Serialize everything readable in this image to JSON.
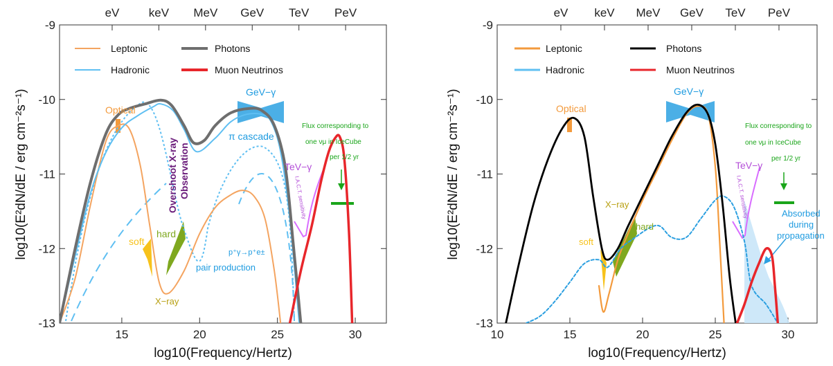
{
  "chart_data": [
    {
      "type": "line",
      "xlabel": "log10(Frequency/Hertz)",
      "ylabel": "log10(E²dN/dE / erg cm⁻²s⁻¹)",
      "xlim": [
        11,
        32
      ],
      "ylim": [
        -13,
        -9
      ],
      "x_ticks": [
        15,
        20,
        25,
        30
      ],
      "y_ticks": [
        -13,
        -12,
        -11,
        -10,
        -9
      ],
      "top_axis": {
        "labels": [
          "eV",
          "keV",
          "MeV",
          "GeV",
          "TeV",
          "PeV"
        ],
        "x": [
          14.38,
          17.38,
          20.38,
          23.38,
          26.38,
          29.38
        ]
      },
      "legend": [
        "Leptonic",
        "Hadronic",
        "Photons",
        "Muon Neutrinos"
      ],
      "series": [
        {
          "name": "Photons",
          "color": "#6e6e6e",
          "x": [
            11,
            12,
            13,
            14,
            14.8,
            15.5,
            16.5,
            17.5,
            18.2,
            19,
            19.6,
            20.3,
            21,
            22,
            23.2,
            24,
            24.8,
            25.5,
            26,
            26.5
          ],
          "y": [
            -13,
            -12,
            -11.1,
            -10.45,
            -10.2,
            -10.12,
            -10.06,
            -10.01,
            -10.08,
            -10.35,
            -10.58,
            -10.55,
            -10.35,
            -10.18,
            -10.12,
            -10.15,
            -10.35,
            -10.9,
            -11.9,
            -13
          ]
        },
        {
          "name": "Leptonic",
          "color": "#f4a460",
          "x": [
            11,
            12,
            13,
            14,
            14.8,
            15.5,
            16.2,
            16.8,
            17.4,
            18,
            19,
            20,
            21,
            22,
            22.8,
            23.5,
            24.2,
            24.8,
            25.2
          ],
          "y": [
            -13,
            -12.4,
            -11.4,
            -10.55,
            -10.35,
            -10.4,
            -10.9,
            -11.7,
            -12.45,
            -12.6,
            -12.3,
            -11.8,
            -11.45,
            -11.28,
            -11.22,
            -11.3,
            -11.6,
            -12.3,
            -13
          ]
        },
        {
          "name": "Hadronic",
          "color": "#5fbff2",
          "x": [
            11,
            12,
            13,
            14,
            15,
            16,
            17,
            17.5,
            18.3,
            19,
            19.8,
            21,
            22,
            23,
            24,
            24.6,
            25.2,
            25.8,
            26.4
          ],
          "y": [
            -13,
            -12.1,
            -11.25,
            -10.7,
            -10.38,
            -10.22,
            -10.1,
            -10.06,
            -10.15,
            -10.4,
            -10.7,
            -10.52,
            -10.3,
            -10.2,
            -10.2,
            -10.3,
            -10.7,
            -11.6,
            -13
          ]
        },
        {
          "name": "Muon Neutrinos",
          "color": "#e8262b",
          "x": [
            25.8,
            26.5,
            27.2,
            27.8,
            28.3,
            28.7,
            29.0,
            29.3,
            29.6,
            29.8
          ],
          "y": [
            -13,
            -12.3,
            -11.7,
            -11.1,
            -10.7,
            -10.52,
            -10.5,
            -10.8,
            -11.8,
            -13
          ]
        }
      ],
      "annotations": {
        "optical": "Optical",
        "gev": "GeV−γ",
        "pi_cascade": "π cascade",
        "tev": "TeV−γ",
        "flux_lines": [
          "Flux corresponding to",
          "one νμ in IceCube",
          "per 1/2 yr"
        ],
        "overshoot": [
          "Overshoot X-ray",
          "Observation"
        ],
        "soft": "soft",
        "hard": "hard",
        "pair_lines": [
          "p⁺γ→p⁺e±",
          "pair production"
        ],
        "xray": "X−ray",
        "iact": "I.A.C.T. sensitivity"
      }
    },
    {
      "type": "line",
      "xlabel": "log10(Frequency/Hertz)",
      "ylabel": "log10(E²dN/dE / erg cm⁻²s⁻¹)",
      "xlim": [
        10,
        32
      ],
      "ylim": [
        -13,
        -9
      ],
      "x_ticks": [
        10,
        15,
        20,
        25,
        30
      ],
      "y_ticks": [
        -13,
        -12,
        -11,
        -10,
        -9
      ],
      "top_axis": {
        "labels": [
          "eV",
          "keV",
          "MeV",
          "GeV",
          "TeV",
          "PeV"
        ],
        "x": [
          14.38,
          17.38,
          20.38,
          23.38,
          26.38,
          29.38
        ]
      },
      "legend": [
        "Leptonic",
        "Hadronic",
        "Photons",
        "Muon Neutrinos"
      ],
      "series": [
        {
          "name": "Photons",
          "color": "#000000",
          "x": [
            10.6,
            11.5,
            12.5,
            13.5,
            14.5,
            15.3,
            16,
            16.6,
            17.2,
            17.6,
            18.3,
            19,
            20,
            21,
            22,
            23,
            23.8,
            24.5,
            25,
            25.5,
            26,
            26.4
          ],
          "y": [
            -13,
            -12.2,
            -11.4,
            -10.8,
            -10.38,
            -10.25,
            -10.5,
            -11.3,
            -12.0,
            -12.15,
            -12.0,
            -11.7,
            -11.3,
            -10.9,
            -10.5,
            -10.18,
            -10.07,
            -10.2,
            -10.6,
            -11.4,
            -12.4,
            -13
          ]
        },
        {
          "name": "Leptonic",
          "color": "#f39a3c",
          "x": [
            17.0,
            17.3,
            17.7,
            18.3,
            19,
            20,
            21,
            22,
            23,
            23.8,
            24.5,
            25,
            25.3,
            25.6
          ],
          "y": [
            -12.5,
            -12.85,
            -12.6,
            -12.15,
            -11.8,
            -11.35,
            -10.95,
            -10.55,
            -10.2,
            -10.09,
            -10.2,
            -10.9,
            -11.9,
            -13
          ]
        },
        {
          "name": "Hadronic",
          "color": "#2b9fe0",
          "x": [
            12,
            13,
            14,
            15,
            16,
            17,
            17.6,
            18.5,
            19.5,
            20.5,
            21.2,
            22,
            23,
            24,
            25,
            25.6,
            26.3,
            27,
            27.5,
            28.5,
            29.3
          ],
          "y": [
            -13,
            -12.9,
            -12.7,
            -12.45,
            -12.2,
            -12.15,
            -12.25,
            -12.0,
            -11.85,
            -11.72,
            -11.7,
            -11.85,
            -11.85,
            -11.6,
            -11.35,
            -11.3,
            -11.45,
            -11.9,
            -12.5,
            -12.75,
            -13
          ]
        },
        {
          "name": "Muon Neutrinos",
          "color": "#e8262b",
          "x": [
            26.5,
            27,
            27.5,
            28,
            28.5,
            28.9,
            29.1,
            29.3
          ],
          "y": [
            -13,
            -12.75,
            -12.45,
            -12.2,
            -12.0,
            -12.1,
            -12.5,
            -13
          ]
        }
      ],
      "annotations": {
        "optical": "Optical",
        "gev": "GeV−γ",
        "tev": "TeV−γ",
        "flux_lines": [
          "Flux corresponding to",
          "one νμ in IceCube",
          "per 1/2 yr"
        ],
        "absorbed_lines": [
          "Absorbed",
          "during",
          "propagation"
        ],
        "soft": "soft",
        "hard": "hard",
        "xray": "X−ray",
        "iact": "I.A.C.T. sensitivity"
      }
    }
  ]
}
